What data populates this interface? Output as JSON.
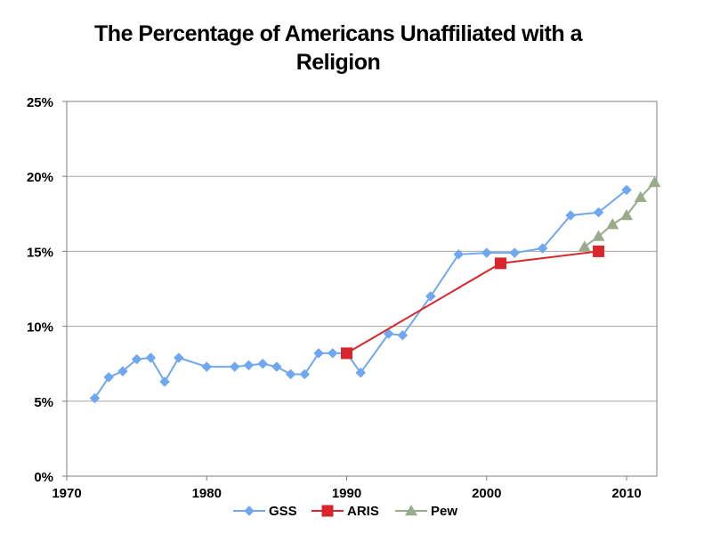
{
  "chart_data": {
    "type": "line",
    "title": "The Percentage of Americans Unaffiliated with a Religion",
    "xlabel": "",
    "ylabel": "",
    "xlim": [
      1970,
      2012
    ],
    "ylim": [
      0,
      25
    ],
    "x_ticks": [
      1970,
      1980,
      1990,
      2000,
      2010
    ],
    "y_ticks": [
      0,
      5,
      10,
      15,
      20,
      25
    ],
    "y_tick_labels": [
      "0%",
      "5%",
      "10%",
      "15%",
      "20%",
      "25%"
    ],
    "grid": "horizontal",
    "legend_position": "bottom",
    "series": [
      {
        "name": "GSS",
        "color": "#6fa8f0",
        "marker": "diamond",
        "points": [
          [
            1972,
            5.2
          ],
          [
            1973,
            6.6
          ],
          [
            1974,
            7.0
          ],
          [
            1975,
            7.8
          ],
          [
            1976,
            7.9
          ],
          [
            1977,
            6.3
          ],
          [
            1978,
            7.9
          ],
          [
            1980,
            7.3
          ],
          [
            1982,
            7.3
          ],
          [
            1983,
            7.4
          ],
          [
            1984,
            7.5
          ],
          [
            1985,
            7.3
          ],
          [
            1986,
            6.8
          ],
          [
            1987,
            6.8
          ],
          [
            1988,
            8.2
          ],
          [
            1989,
            8.2
          ],
          [
            1990,
            8.2
          ],
          [
            1991,
            6.9
          ],
          [
            1993,
            9.5
          ],
          [
            1994,
            9.4
          ],
          [
            1996,
            12.0
          ],
          [
            1998,
            14.8
          ],
          [
            2000,
            14.9
          ],
          [
            2002,
            14.9
          ],
          [
            2004,
            15.2
          ],
          [
            2006,
            17.4
          ],
          [
            2008,
            17.6
          ],
          [
            2010,
            19.1
          ]
        ]
      },
      {
        "name": "ARIS",
        "color": "#d9262c",
        "marker": "square",
        "points": [
          [
            1990,
            8.2
          ],
          [
            2001,
            14.2
          ],
          [
            2008,
            15.0
          ]
        ]
      },
      {
        "name": "Pew",
        "color": "#9aab8c",
        "marker": "triangle",
        "points": [
          [
            2007,
            15.3
          ],
          [
            2008,
            16.0
          ],
          [
            2009,
            16.8
          ],
          [
            2010,
            17.4
          ],
          [
            2011,
            18.6
          ],
          [
            2012,
            19.6
          ]
        ]
      }
    ]
  }
}
